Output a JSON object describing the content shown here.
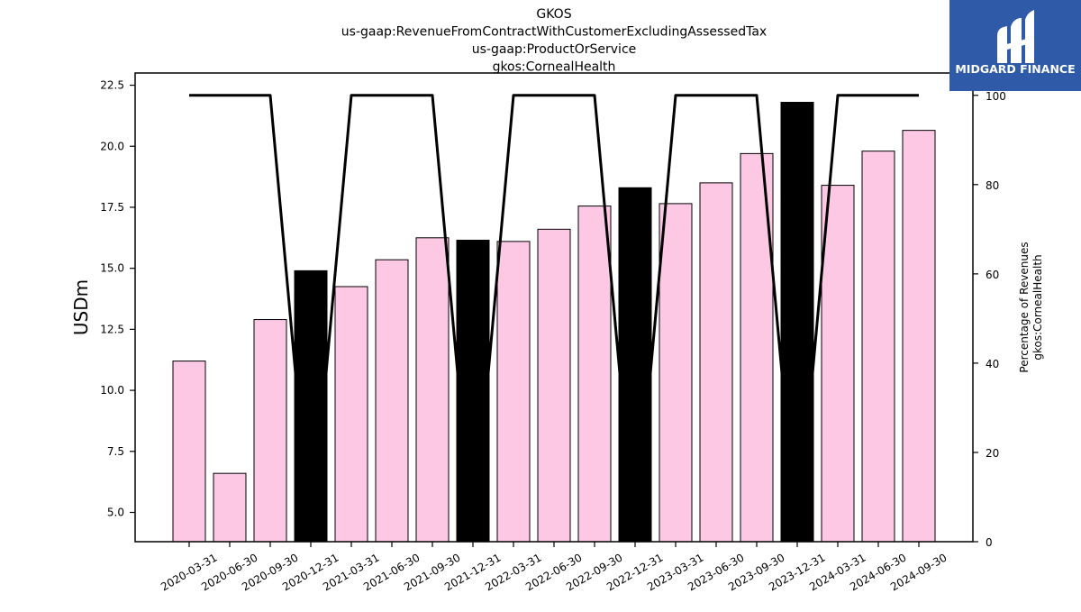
{
  "chart_data": {
    "type": "bar",
    "title": [
      "GKOS",
      "us-gaap:RevenueFromContractWithCustomerExcludingAssessedTax",
      "us-gaap:ProductOrService",
      "gkos:CornealHealth"
    ],
    "ylabel": "USDm",
    "y2label": [
      "Percentage of Revenues",
      "gkos:CornealHealth"
    ],
    "categories": [
      "2020-03-31",
      "2020-06-30",
      "2020-09-30",
      "2020-12-31",
      "2021-03-31",
      "2021-06-30",
      "2021-09-30",
      "2021-12-31",
      "2022-03-31",
      "2022-06-30",
      "2022-09-30",
      "2022-12-31",
      "2023-03-31",
      "2023-06-30",
      "2023-09-30",
      "2023-12-31",
      "2024-03-31",
      "2024-06-30",
      "2024-09-30"
    ],
    "values": [
      11.2,
      6.6,
      12.9,
      14.9,
      14.25,
      15.35,
      16.25,
      16.15,
      16.1,
      16.6,
      17.55,
      18.3,
      17.65,
      18.5,
      19.7,
      21.8,
      18.4,
      19.8,
      20.65
    ],
    "highlighted": [
      false,
      false,
      false,
      true,
      false,
      false,
      false,
      true,
      false,
      false,
      false,
      true,
      false,
      false,
      false,
      true,
      false,
      false,
      false
    ],
    "bar_color": "#fcc8e4",
    "highlight_color": "#000000",
    "ylim": [
      3.8,
      23.0
    ],
    "yticks": [
      "5.0",
      "7.5",
      "10.0",
      "12.5",
      "15.0",
      "17.5",
      "20.0",
      "22.5"
    ],
    "line_series": {
      "values": [
        100,
        100,
        100,
        0,
        100,
        100,
        100,
        0,
        100,
        100,
        100,
        0,
        100,
        100,
        100,
        0,
        100,
        100,
        100
      ],
      "color": "#000000"
    },
    "y2lim": [
      0,
      105
    ],
    "y2ticks": [
      "0",
      "20",
      "40",
      "60",
      "80",
      "100"
    ],
    "grid": false
  },
  "logo": {
    "text": "MIDGARD FINANCE",
    "background": "#2f5aa8"
  }
}
